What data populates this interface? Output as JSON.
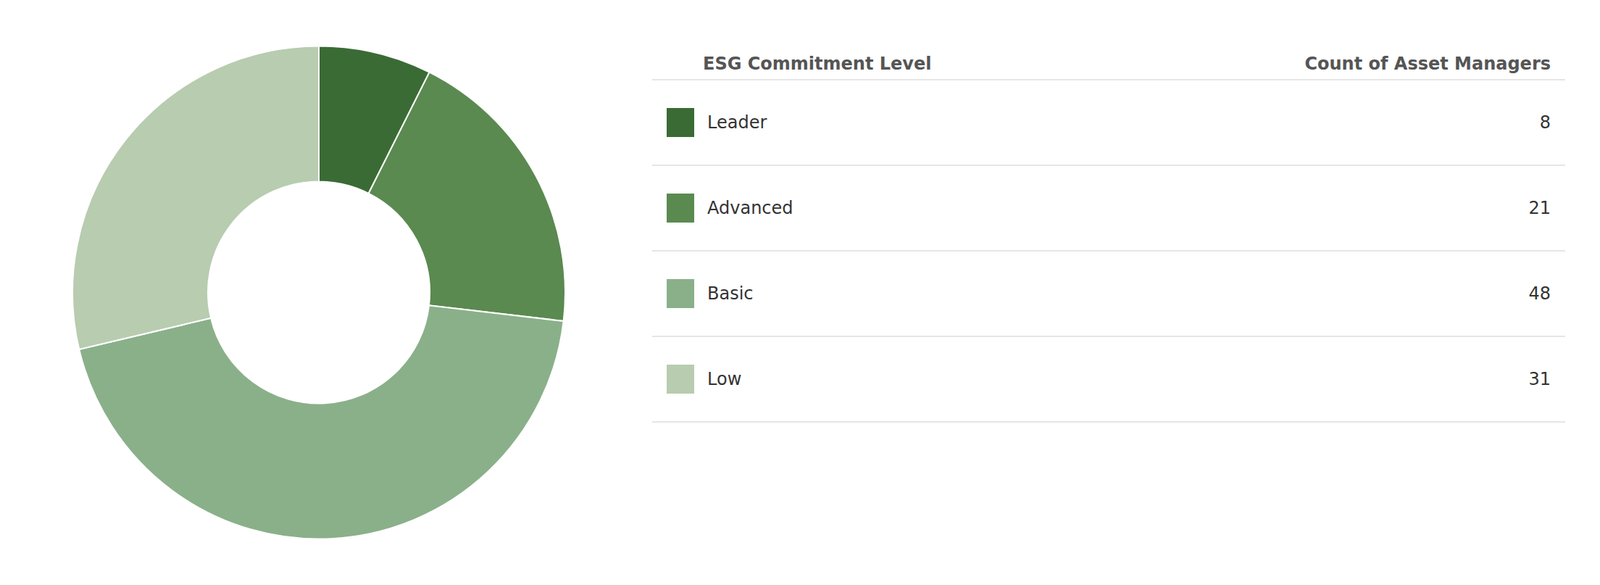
{
  "chart_data": {
    "type": "donut",
    "categories": [
      "Leader",
      "Advanced",
      "Basic",
      "Low"
    ],
    "values": [
      8,
      21,
      48,
      31
    ],
    "colors": [
      "#3a6b35",
      "#5a8a50",
      "#8ab08a",
      "#b8ccb0"
    ],
    "annotations": [
      "ESG Commitment Level",
      "Count of Asset Managers"
    ],
    "legend": "right"
  }
}
